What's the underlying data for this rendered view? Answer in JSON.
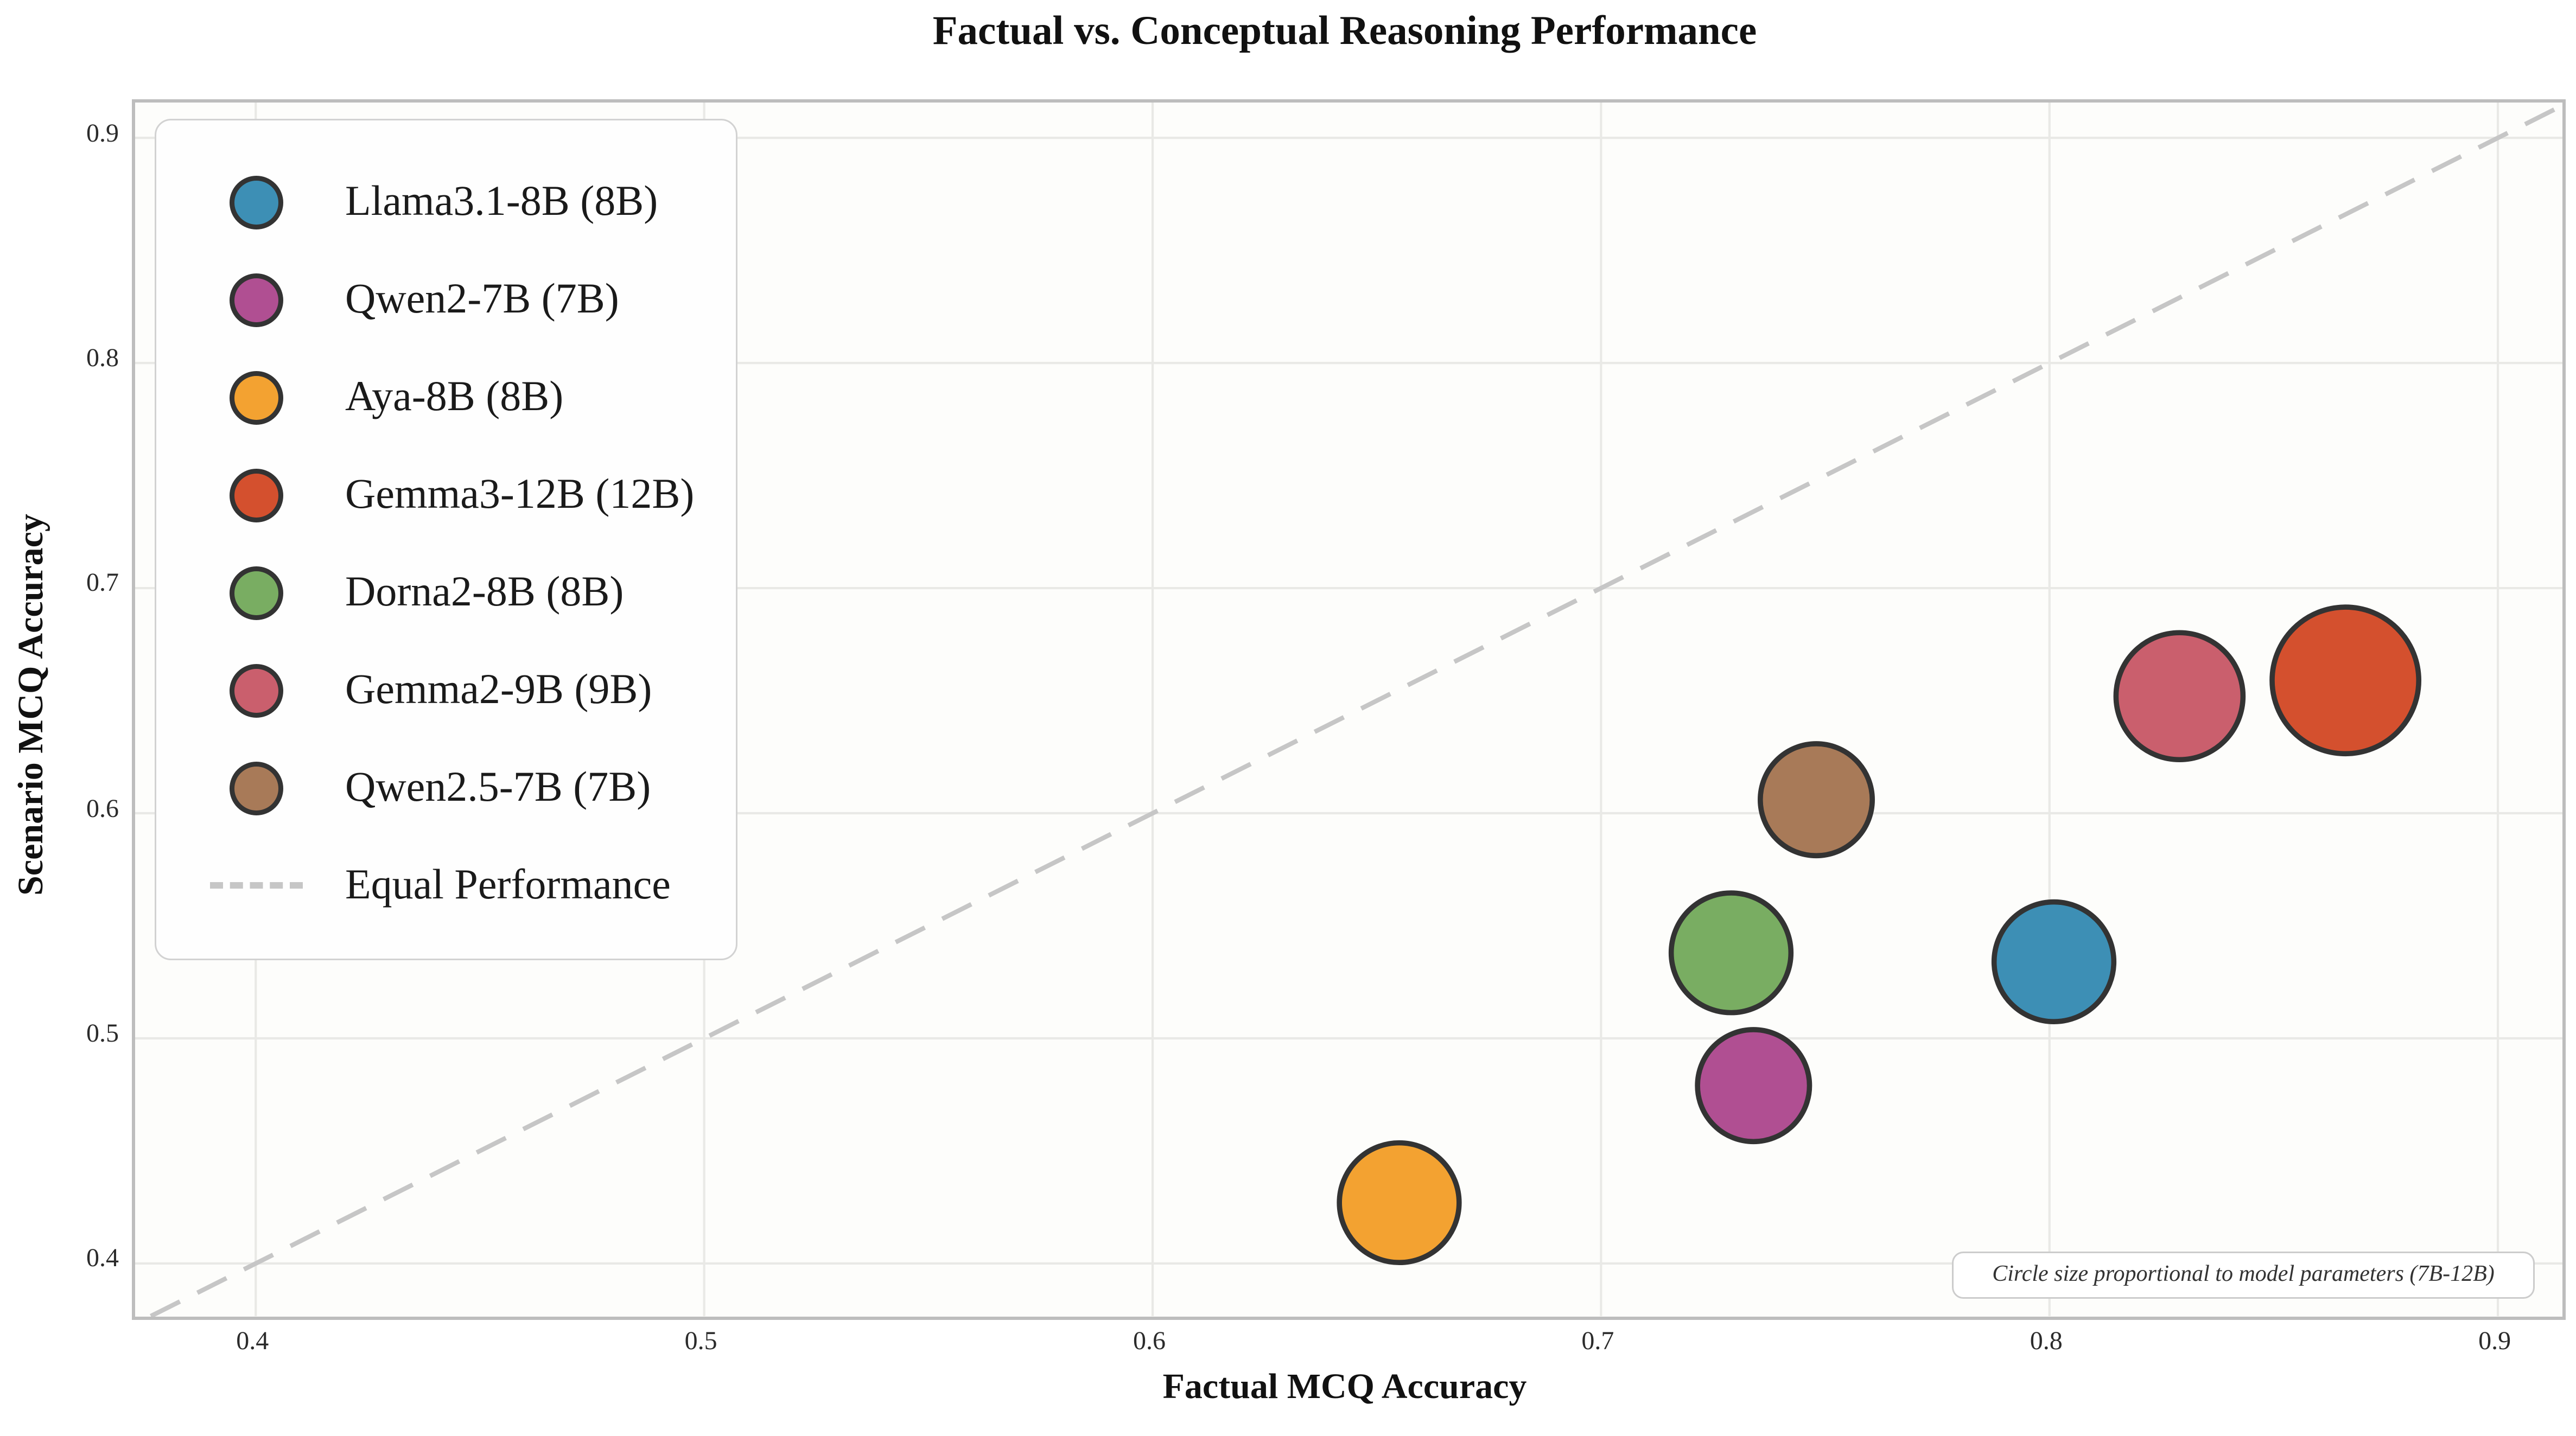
{
  "title": "Factual vs. Conceptual Reasoning Performance",
  "chart_data": {
    "type": "scatter",
    "title": "Factual vs. Conceptual Reasoning Performance",
    "xlabel": "Factual MCQ Accuracy",
    "ylabel": "Scenario MCQ Accuracy",
    "xlim": [
      0.3731,
      0.9145
    ],
    "ylim": [
      0.3766,
      0.9157
    ],
    "xticks": [
      0.4,
      0.5,
      0.6,
      0.7,
      0.8,
      0.9
    ],
    "yticks": [
      0.4,
      0.5,
      0.6,
      0.7,
      0.8,
      0.9
    ],
    "grid": true,
    "legend_position": "upper left",
    "size_note": "circle radius proportional to sqrt(model parameters)",
    "series": [
      {
        "name": "Llama3.1-8B",
        "label": "Llama3.1-8B (8B)",
        "params_b": 8,
        "x": 0.801,
        "y": 0.534,
        "color": "#3d8fb5"
      },
      {
        "name": "Qwen2-7B",
        "label": "Qwen2-7B (7B)",
        "params_b": 7,
        "x": 0.734,
        "y": 0.479,
        "color": "#b04f92"
      },
      {
        "name": "Aya-8B",
        "label": "Aya-8B (8B)",
        "params_b": 8,
        "x": 0.655,
        "y": 0.427,
        "color": "#f3a231"
      },
      {
        "name": "Gemma3-12B",
        "label": "Gemma3-12B (12B)",
        "params_b": 12,
        "x": 0.866,
        "y": 0.659,
        "color": "#d4502e"
      },
      {
        "name": "Dorna2-8B",
        "label": "Dorna2-8B (8B)",
        "params_b": 8,
        "x": 0.729,
        "y": 0.538,
        "color": "#79ad62"
      },
      {
        "name": "Gemma2-9B",
        "label": "Gemma2-9B (9B)",
        "params_b": 9,
        "x": 0.829,
        "y": 0.652,
        "color": "#ca5f6d"
      },
      {
        "name": "Qwen2.5-7B",
        "label": "Qwen2.5-7B (7B)",
        "params_b": 7,
        "x": 0.748,
        "y": 0.606,
        "color": "#a87a58"
      }
    ],
    "reference_line": {
      "label": "Equal Performance",
      "type": "y=x",
      "style": "dashed",
      "color": "#c6c6c6"
    },
    "annotation": "Circle size proportional to model parameters (7B-12B)"
  },
  "colors": {
    "figure_bg": "#ffffff",
    "plot_bg": "#fdfdfb",
    "grid": "#e9e9e6",
    "spine": "#bdbdbd",
    "tick_text": "#2b2b2b",
    "text": "#111111",
    "dash_line": "#c6c6c6",
    "bubble_edge": "#333333",
    "legend_bg": "#fefefe",
    "legend_border": "#d2d2d2",
    "annotation_border": "#cccccc"
  }
}
